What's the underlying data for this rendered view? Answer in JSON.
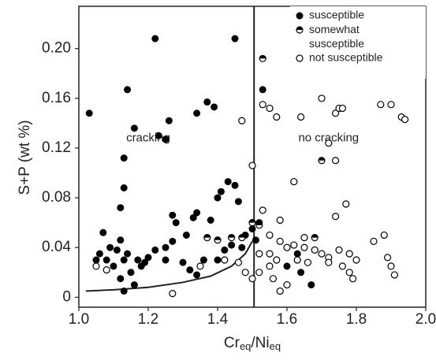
{
  "chart_data": {
    "type": "scatter",
    "xlabel_parts": [
      "Cr",
      "eq",
      "/Ni",
      "eq"
    ],
    "ylabel": "S+P (wt %)",
    "xlim": [
      1.0,
      2.0
    ],
    "ylim": [
      -0.008,
      0.234
    ],
    "xticks": [
      {
        "value": 1.0,
        "label": "1.0"
      },
      1.2,
      1.4,
      1.6,
      1.8,
      {
        "value": 2.0,
        "label": "2.0"
      }
    ],
    "yticks": [
      0,
      0.04,
      0.08,
      0.12,
      0.16,
      {
        "value": 0.2,
        "label": "0.20"
      }
    ],
    "legend": "upper right",
    "annotations": [
      {
        "text": "cracking",
        "x": 1.2,
        "y": 0.128
      },
      {
        "text": "no cracking",
        "x": 1.72,
        "y": 0.128
      }
    ],
    "vline": 1.505,
    "boundary": {
      "x": [
        1.02,
        1.1,
        1.2,
        1.3,
        1.38,
        1.44,
        1.48,
        1.5
      ],
      "y": [
        0.005,
        0.006,
        0.008,
        0.012,
        0.017,
        0.025,
        0.035,
        0.045
      ]
    },
    "series": [
      {
        "name": "susceptible",
        "color": "#000000",
        "marker": "filled",
        "x": [
          1.03,
          1.22,
          1.45,
          1.14,
          1.13,
          1.13,
          1.16,
          1.26,
          1.23,
          1.25,
          1.34,
          1.37,
          1.39,
          1.41,
          1.43,
          1.45,
          1.46,
          1.4,
          1.12,
          1.07,
          1.12,
          1.27,
          1.28,
          1.33,
          1.34,
          1.38,
          1.27,
          1.31,
          1.25,
          1.22,
          1.2,
          1.18,
          1.15,
          1.1,
          1.08,
          1.05,
          1.06,
          1.09,
          1.11,
          1.13,
          1.14,
          1.17,
          1.19,
          1.12,
          1.13,
          1.16,
          1.25,
          1.3,
          1.32,
          1.34,
          1.36,
          1.4,
          1.42,
          1.44,
          1.47,
          1.48,
          1.5,
          1.51,
          1.53,
          1.52,
          1.63,
          1.64,
          1.67,
          1.6
        ],
        "values": [
          0.148,
          0.208,
          0.208,
          0.167,
          0.112,
          0.088,
          0.136,
          0.142,
          0.13,
          0.127,
          0.148,
          0.157,
          0.153,
          0.085,
          0.093,
          0.09,
          0.077,
          0.08,
          0.072,
          0.052,
          0.046,
          0.066,
          0.06,
          0.064,
          0.068,
          0.062,
          0.045,
          0.05,
          0.04,
          0.038,
          0.032,
          0.025,
          0.02,
          0.025,
          0.03,
          0.03,
          0.035,
          0.04,
          0.038,
          0.03,
          0.035,
          0.03,
          0.028,
          0.015,
          0.005,
          0.01,
          0.03,
          0.028,
          0.022,
          0.018,
          0.03,
          0.03,
          0.038,
          0.042,
          0.04,
          0.05,
          0.055,
          0.046,
          0.167,
          0.06,
          0.035,
          0.02,
          0.01,
          0.025
        ]
      },
      {
        "name": "somewhat susceptible",
        "color": "#000000",
        "marker": "half",
        "x": [
          1.53,
          1.5,
          1.7,
          1.47,
          1.52,
          1.44,
          1.68,
          1.37,
          1.4
        ],
        "values": [
          0.192,
          0.06,
          0.11,
          0.048,
          0.058,
          0.048,
          0.048,
          0.048,
          0.046
        ]
      },
      {
        "name": "not susceptible",
        "color": "#000000",
        "marker": "open",
        "x": [
          1.47,
          1.53,
          1.55,
          1.57,
          1.64,
          1.7,
          1.74,
          1.75,
          1.76,
          1.87,
          1.9,
          1.93,
          1.94,
          1.72,
          1.74,
          1.5,
          1.62,
          1.77,
          1.74,
          1.58,
          1.53,
          1.55,
          1.58,
          1.6,
          1.62,
          1.65,
          1.68,
          1.7,
          1.72,
          1.75,
          1.78,
          1.8,
          1.85,
          1.88,
          1.89,
          1.9,
          1.91,
          1.78,
          1.76,
          1.72,
          1.66,
          1.63,
          1.57,
          1.55,
          1.52,
          1.5,
          1.48,
          1.46,
          1.56,
          1.6,
          1.58,
          1.05,
          1.08,
          1.27,
          1.42,
          1.35,
          1.55,
          1.65,
          1.52,
          1.79
        ],
        "values": [
          0.142,
          0.155,
          0.152,
          0.145,
          0.145,
          0.16,
          0.148,
          0.152,
          0.152,
          0.155,
          0.155,
          0.145,
          0.143,
          0.124,
          0.11,
          0.106,
          0.093,
          0.075,
          0.065,
          0.062,
          0.07,
          0.05,
          0.045,
          0.04,
          0.042,
          0.04,
          0.038,
          0.035,
          0.032,
          0.038,
          0.035,
          0.03,
          0.045,
          0.05,
          0.032,
          0.025,
          0.018,
          0.02,
          0.025,
          0.028,
          0.028,
          0.03,
          0.03,
          0.025,
          0.02,
          0.015,
          0.02,
          0.028,
          0.015,
          0.01,
          0.005,
          0.025,
          0.022,
          0.003,
          0.03,
          0.025,
          0.035,
          0.048,
          0.035,
          0.015
        ]
      }
    ]
  }
}
